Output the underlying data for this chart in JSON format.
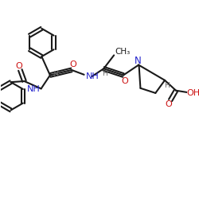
{
  "background": "#ffffff",
  "bond_color": "#1a1a1a",
  "bond_lw": 1.5,
  "N_color": "#2222cc",
  "O_color": "#cc1111",
  "H_color": "#666666",
  "text_color": "#1a1a1a",
  "figw": 2.5,
  "figh": 2.5,
  "dpi": 100,
  "xlim": [
    0,
    10
  ],
  "ylim": [
    0,
    10
  ]
}
